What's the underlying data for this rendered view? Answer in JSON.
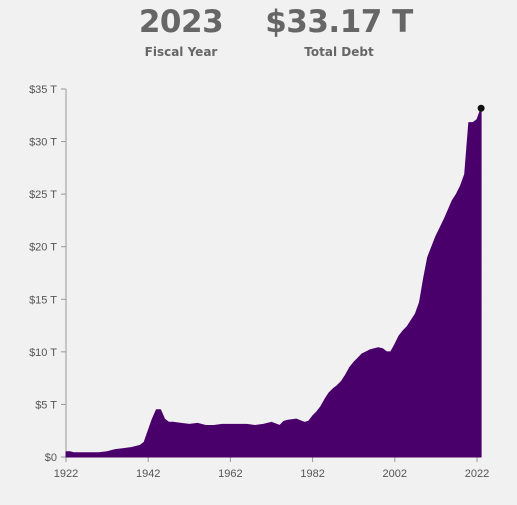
{
  "header": {
    "year_value": "2023",
    "year_label": "Fiscal Year",
    "debt_value": "$33.17 T",
    "debt_label": "Total Debt"
  },
  "colors": {
    "area": "#4a006b",
    "marker": "#111111",
    "text": "#666666"
  },
  "chart_data": {
    "type": "area",
    "title": "",
    "xlabel": "",
    "ylabel": "",
    "xlim": [
      1922,
      2023
    ],
    "ylim": [
      0,
      35
    ],
    "x_ticks": [
      1922,
      1942,
      1962,
      1982,
      2002,
      2022
    ],
    "x_tick_labels": [
      "1922",
      "1942",
      "1962",
      "1982",
      "2002",
      "2022"
    ],
    "y_ticks": [
      0,
      5,
      10,
      15,
      20,
      25,
      30,
      35
    ],
    "y_tick_labels": [
      "$0",
      "$5 T",
      "$10 T",
      "$15 T",
      "$20 T",
      "$25 T",
      "$30 T",
      "$35 T"
    ],
    "series": [
      {
        "x": [
          1922,
          1923,
          1924,
          1926,
          1928,
          1930,
          1932,
          1934,
          1936,
          1938,
          1940,
          1941,
          1942,
          1943,
          1944,
          1945,
          1946,
          1947,
          1948,
          1950,
          1952,
          1954,
          1956,
          1958,
          1960,
          1962,
          1964,
          1966,
          1968,
          1970,
          1972,
          1974,
          1975,
          1976,
          1978,
          1980,
          1981,
          1982,
          1983,
          1984,
          1985,
          1986,
          1987,
          1988,
          1989,
          1990,
          1991,
          1992,
          1993,
          1994,
          1995,
          1996,
          1997,
          1998,
          1999,
          2000,
          2001,
          2002,
          2003,
          2004,
          2005,
          2006,
          2007,
          2008,
          2009,
          2010,
          2011,
          2012,
          2013,
          2014,
          2015,
          2016,
          2017,
          2018,
          2019,
          2020,
          2021,
          2022,
          2023
        ],
        "values": [
          0.5,
          0.5,
          0.4,
          0.4,
          0.4,
          0.4,
          0.5,
          0.7,
          0.8,
          0.9,
          1.1,
          1.4,
          2.5,
          3.6,
          4.5,
          4.5,
          3.6,
          3.3,
          3.3,
          3.2,
          3.1,
          3.2,
          3.0,
          3.0,
          3.1,
          3.1,
          3.1,
          3.1,
          3.0,
          3.1,
          3.3,
          3.0,
          3.4,
          3.5,
          3.6,
          3.3,
          3.4,
          3.9,
          4.3,
          4.8,
          5.5,
          6.1,
          6.5,
          6.8,
          7.2,
          7.8,
          8.5,
          9.0,
          9.4,
          9.8,
          10.0,
          10.2,
          10.3,
          10.4,
          10.3,
          10.0,
          10.0,
          10.7,
          11.5,
          12.0,
          12.4,
          13.0,
          13.6,
          14.7,
          17.0,
          19.0,
          20.0,
          21.0,
          21.8,
          22.6,
          23.5,
          24.4,
          25.0,
          25.8,
          26.9,
          31.8,
          31.8,
          32.1,
          33.17
        ]
      }
    ],
    "highlight": {
      "x": 2023,
      "y": 33.17
    }
  }
}
